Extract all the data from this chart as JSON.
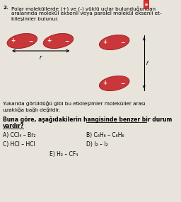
{
  "bg_color": "#e8e4dc",
  "title_num": "2.",
  "text_line1": "Polar moleküllerde (+) ve (-) yüklü uçlar bulunduğundan",
  "text_line2": "aralarında molekül eksenli veya paralel molekül eksenli et-",
  "text_line3": "kileşimler bulunur.",
  "ellipse_color": "#c9373a",
  "ellipse_edge": "#a02020",
  "bottom_text1": "Yukarıda görüldüğü gibi bu etkileşimler moleküller arası",
  "bottom_text2": "uzaklığa bağlı değildir.",
  "bold_text1": "Buna göre, aşağıdakilerin hangisinde benzer bir durum",
  "bold_text2": "vardır?",
  "opt_A": "A) CCl₄ – Br₂",
  "opt_B": "B) C₆H₆ – C₆H₆",
  "opt_C": "C) HCl – HCl",
  "opt_D": "D) I₂ – I₂",
  "opt_E": "E) H₂ – CF₄",
  "font_size_text": 5.2,
  "font_size_opts": 5.5,
  "font_size_bold": 5.5,
  "badge_color": "#d63030"
}
